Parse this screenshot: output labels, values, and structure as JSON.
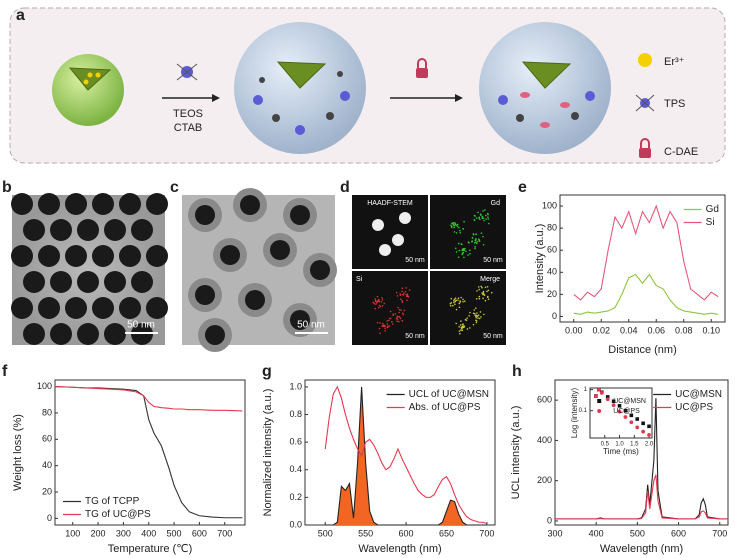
{
  "panel_labels": [
    "a",
    "b",
    "c",
    "d",
    "e",
    "f",
    "g",
    "h"
  ],
  "schematic": {
    "reagents": [
      "TEOS",
      "CTAB"
    ],
    "legend": [
      "Er³⁺",
      "TPS",
      "C-DAE"
    ]
  },
  "micrographs": {
    "b_scale": "50 nm",
    "c_scale": "50 nm",
    "d_titles": [
      "HAADF-STEM",
      "Gd",
      "Si",
      "Merge"
    ],
    "d_scale": [
      "50 nm",
      "50 nm",
      "50 nm",
      "50 nm"
    ]
  },
  "chart_data": [
    {
      "type": "line",
      "xlabel": "Distance (nm)",
      "ylabel": "Intensity (a.u.)",
      "x": [
        0,
        0.005,
        0.01,
        0.015,
        0.02,
        0.025,
        0.03,
        0.035,
        0.04,
        0.045,
        0.05,
        0.055,
        0.06,
        0.065,
        0.07,
        0.075,
        0.08,
        0.085,
        0.09,
        0.095,
        0.1,
        0.105
      ],
      "series": [
        {
          "name": "Gd",
          "color": "#8dc63f",
          "values": [
            3,
            2,
            4,
            3,
            4,
            5,
            8,
            20,
            35,
            38,
            30,
            38,
            28,
            25,
            15,
            8,
            5,
            4,
            3,
            2,
            3,
            2
          ]
        },
        {
          "name": "Si",
          "color": "#e8577a",
          "values": [
            20,
            15,
            22,
            18,
            25,
            60,
            90,
            80,
            95,
            75,
            95,
            85,
            100,
            80,
            95,
            85,
            50,
            25,
            20,
            15,
            22,
            18
          ]
        }
      ],
      "xlim": [
        -0.01,
        0.11
      ],
      "xticks": [
        {
          "value": 0,
          "label": "0.00"
        },
        0.02,
        0.04,
        0.06,
        0.08,
        {
          "value": 0.1,
          "label": "0.10"
        }
      ],
      "ylim": [
        -5,
        110
      ],
      "yticks": [
        0,
        20,
        40,
        60,
        80,
        100
      ],
      "legend": "upper right"
    },
    {
      "type": "line",
      "xlabel": "Temperature (℃)",
      "ylabel": "Weight loss (%)",
      "x": [
        30,
        100,
        150,
        200,
        250,
        300,
        350,
        380,
        400,
        420,
        450,
        480,
        500,
        530,
        560,
        600,
        650,
        700,
        770
      ],
      "series": [
        {
          "name": "TG of TCPP",
          "color": "#333333",
          "values": [
            100,
            99.5,
            99,
            99,
            98.5,
            98,
            97,
            93,
            75,
            65,
            55,
            38,
            25,
            12,
            5,
            2,
            1,
            0.5,
            0.5
          ]
        },
        {
          "name": "TG of UC@PS",
          "color": "#e8384f",
          "values": [
            100,
            99.5,
            99,
            98.5,
            98,
            97.5,
            96,
            93,
            88,
            85,
            84,
            83.5,
            83,
            83,
            82.5,
            82.5,
            82,
            82,
            81.5
          ]
        }
      ],
      "xlim": [
        30,
        780
      ],
      "xticks": [
        100,
        200,
        300,
        400,
        500,
        600,
        700
      ],
      "ylim": [
        -5,
        105
      ],
      "yticks": [
        0,
        20,
        40,
        60,
        80,
        100
      ],
      "legend": "lower left"
    },
    {
      "type": "line",
      "xlabel": "Wavelength (nm)",
      "ylabel": "Normalized intensity (a.u.)",
      "x": [
        500,
        505,
        510,
        515,
        520,
        525,
        530,
        535,
        540,
        545,
        550,
        555,
        560,
        565,
        570,
        575,
        580,
        585,
        590,
        595,
        600,
        605,
        610,
        615,
        620,
        625,
        630,
        635,
        640,
        645,
        650,
        655,
        660,
        665,
        670,
        675,
        680,
        685,
        690,
        695,
        700
      ],
      "series": [
        {
          "name": "UCL of UC@MSN",
          "color": "#222222",
          "fill": "#f26522",
          "values": [
            0,
            0,
            0,
            0.02,
            0.28,
            0.25,
            0.3,
            0.05,
            0.45,
            1.0,
            0.45,
            0.1,
            0.02,
            0,
            0,
            0,
            0,
            0,
            0,
            0,
            0,
            0,
            0,
            0,
            0,
            0,
            0,
            0,
            0,
            0.02,
            0.1,
            0.18,
            0.17,
            0.08,
            0.02,
            0,
            0,
            0,
            0,
            0,
            0
          ]
        },
        {
          "name": "Abs. of UC@PS",
          "color": "#e8384f",
          "values": [
            0.55,
            0.78,
            0.95,
            1.0,
            0.92,
            0.8,
            0.7,
            0.62,
            0.55,
            0.5,
            0.6,
            0.62,
            0.58,
            0.52,
            0.45,
            0.4,
            0.42,
            0.48,
            0.55,
            0.48,
            0.42,
            0.36,
            0.3,
            0.25,
            0.22,
            0.2,
            0.2,
            0.22,
            0.28,
            0.33,
            0.35,
            0.3,
            0.22,
            0.15,
            0.1,
            0.06,
            0.04,
            0.03,
            0.02,
            0.02,
            0.01
          ]
        }
      ],
      "xlim": [
        475,
        710
      ],
      "xticks": [
        500,
        550,
        600,
        650,
        700
      ],
      "ylim": [
        0,
        1.05
      ],
      "yticks": [
        {
          "value": 0,
          "label": "0.0"
        },
        0.2,
        0.4,
        0.6,
        0.8,
        {
          "value": 1,
          "label": "1.0"
        }
      ],
      "legend": "upper right"
    },
    {
      "type": "line",
      "xlabel": "Wavelength (nm)",
      "ylabel": "UCL intensity (a.u.)",
      "x": [
        300,
        350,
        400,
        410,
        420,
        450,
        500,
        510,
        520,
        525,
        530,
        540,
        545,
        550,
        560,
        600,
        640,
        650,
        655,
        660,
        665,
        670,
        700,
        720
      ],
      "series": [
        {
          "name": "UC@MSN",
          "color": "#222222",
          "values": [
            10,
            10,
            10,
            15,
            10,
            10,
            10,
            15,
            60,
            180,
            80,
            300,
            610,
            150,
            20,
            10,
            10,
            30,
            90,
            110,
            80,
            20,
            10,
            10
          ]
        },
        {
          "name": "UC@PS",
          "color": "#e8384f",
          "values": [
            10,
            10,
            10,
            12,
            10,
            10,
            10,
            12,
            40,
            150,
            60,
            200,
            230,
            100,
            15,
            10,
            10,
            20,
            45,
            50,
            40,
            15,
            10,
            10
          ]
        }
      ],
      "xlim": [
        300,
        720
      ],
      "xticks": [
        300,
        400,
        500,
        600,
        700
      ],
      "ylim": [
        -20,
        700
      ],
      "yticks": [
        0,
        200,
        400,
        600
      ],
      "legend": "upper right"
    },
    {
      "type": "scatter",
      "xlabel": "Time (ms)",
      "ylabel": "Log (intensity)",
      "log_y": true,
      "x": [
        0.2,
        0.3,
        0.4,
        0.6,
        0.8,
        1.0,
        1.2,
        1.4,
        1.6,
        1.8,
        2.0
      ],
      "series": [
        {
          "name": "UC@MSN",
          "color": "#111111",
          "marker": "square",
          "values": [
            0.5,
            1,
            0.75,
            0.45,
            0.28,
            0.17,
            0.1,
            0.06,
            0.04,
            0.025,
            0.018
          ]
        },
        {
          "name": "UC@PS",
          "color": "#e8384f",
          "marker": "circle",
          "values": [
            0.5,
            1,
            0.7,
            0.35,
            0.18,
            0.09,
            0.05,
            0.028,
            0.016,
            0.01,
            0.007
          ]
        }
      ],
      "xlim": [
        0,
        2.1
      ],
      "xticks": [
        0.5,
        {
          "value": 1,
          "label": "1.0"
        },
        1.5,
        {
          "value": 2,
          "label": "2.0"
        }
      ],
      "ylim": [
        0.005,
        1.2
      ],
      "yticks": [
        0.1,
        1
      ],
      "legend": "upper right"
    }
  ]
}
